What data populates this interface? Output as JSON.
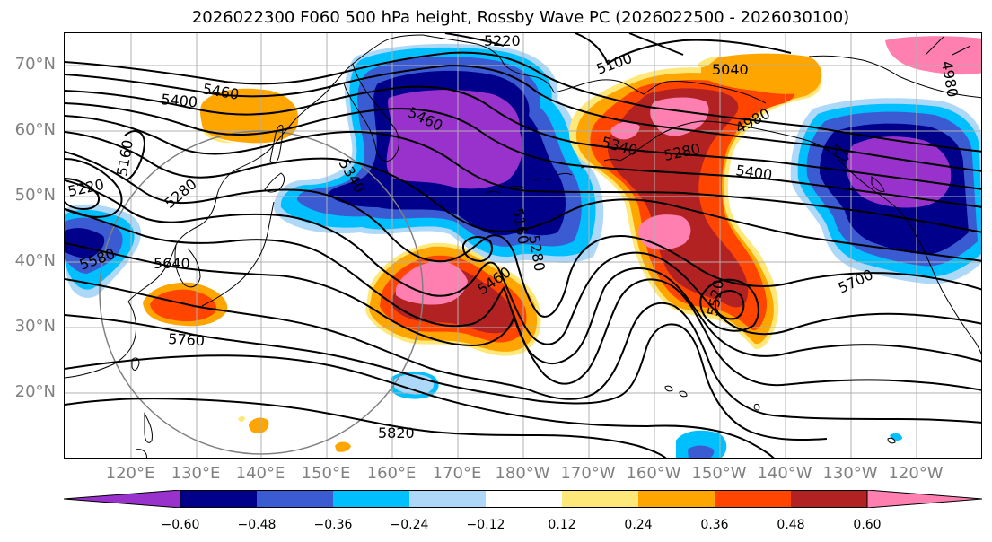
{
  "title": "2026022300 F060 500 hPa height, Rossby Wave PC (2026022500 - 2026030100)",
  "lat_labels": [
    "70°N",
    "60°N",
    "50°N",
    "40°N",
    "30°N",
    "20°N"
  ],
  "lon_labels": [
    "120°E",
    "130°E",
    "140°E",
    "150°E",
    "160°E",
    "170°E",
    "180°W",
    "170°W",
    "160°W",
    "150°W",
    "140°W",
    "130°W",
    "120°W"
  ],
  "colorbar": {
    "ticks": [
      "−0.60",
      "−0.48",
      "−0.36",
      "−0.24",
      "−0.12",
      "0.12",
      "0.24",
      "0.36",
      "0.48",
      "0.60"
    ],
    "colors": [
      "#9932cc",
      "#00008b",
      "#3b5bd2",
      "#00bfff",
      "#add8f8",
      "#ffffff",
      "#ffe87a",
      "#ffa500",
      "#ff4500",
      "#b22222",
      "#ff7fb0"
    ]
  },
  "contour_labels": [
    "5220",
    "5100",
    "5040",
    "5460",
    "5400",
    "5160",
    "5460",
    "5340",
    "5340",
    "5280",
    "5280",
    "5160",
    "4980",
    "5400",
    "5220",
    "5280",
    "5580",
    "5640",
    "5460",
    "5520",
    "5700",
    "5760",
    "5820",
    "4980"
  ]
}
